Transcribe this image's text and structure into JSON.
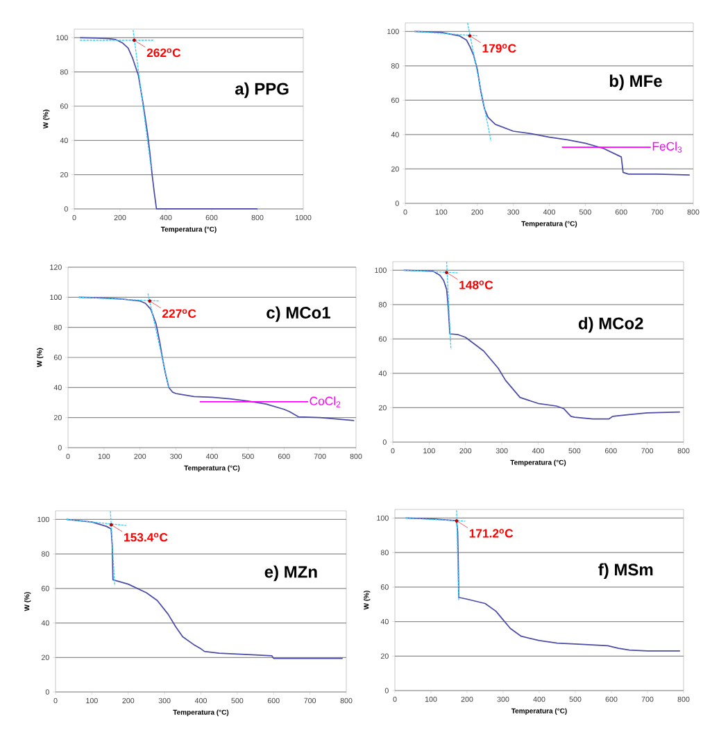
{
  "chart_data": [
    {
      "type": "line",
      "title": "a) PPG",
      "xlabel": "Temperatura (°C)",
      "ylabel": "W (%)",
      "xlim": [
        0,
        1000
      ],
      "ylim": [
        0,
        105
      ],
      "xticks": [
        0,
        200,
        400,
        600,
        800,
        1000
      ],
      "yticks": [
        0,
        20,
        40,
        60,
        80,
        100
      ],
      "grid": "y",
      "marker": "none",
      "series": [
        {
          "color": "#4b4ba8",
          "line_style": "solid",
          "x": [
            25,
            100,
            150,
            180,
            210,
            235,
            255,
            270,
            280,
            290,
            300,
            310,
            320,
            330,
            340,
            350,
            359,
            400,
            600,
            800
          ],
          "values": [
            100,
            99.8,
            99.5,
            99,
            97,
            94,
            88,
            82,
            78,
            70,
            62,
            53,
            44,
            33,
            20,
            9,
            0,
            0,
            0,
            0
          ]
        },
        {
          "color": "#33ccff",
          "line_style": "dashed",
          "x": [
            25,
            345
          ],
          "values": [
            98.5,
            98.5
          ]
        },
        {
          "color": "#33ccff",
          "line_style": "dashed",
          "x": [
            257,
            336
          ],
          "values": [
            104.5,
            23.4
          ]
        }
      ],
      "annotations": [
        {
          "text": "262$^{o}$C",
          "x": 262,
          "y": 98.5
        }
      ]
    },
    {
      "type": "line",
      "title": "b) MFe",
      "xlabel": "Temperatura (°C)",
      "xlim": [
        0,
        800
      ],
      "ylim": [
        0,
        105
      ],
      "xticks": [
        0,
        100,
        200,
        300,
        400,
        500,
        600,
        700,
        800
      ],
      "yticks": [
        0,
        20,
        40,
        60,
        80,
        100
      ],
      "grid": "y",
      "marker": "none",
      "series": [
        {
          "color": "#4b4ba8",
          "line_style": "solid",
          "x": [
            25,
            100,
            150,
            170,
            180,
            190,
            200,
            210,
            220,
            230,
            250,
            300,
            350,
            400,
            450,
            500,
            550,
            590,
            600,
            605,
            620,
            700,
            790
          ],
          "values": [
            100,
            99.5,
            97.5,
            95,
            91,
            86,
            78,
            65,
            55,
            50,
            46,
            42,
            40.5,
            38.5,
            37,
            35,
            32,
            28,
            27,
            18,
            17,
            17,
            16.5
          ]
        },
        {
          "color": "#33ccff",
          "line_style": "dashed",
          "x": [
            25,
            200
          ],
          "values": [
            100,
            97.5
          ]
        },
        {
          "color": "#33ccff",
          "line_style": "dashed",
          "x": [
            173,
            238
          ],
          "values": [
            105,
            36.3
          ]
        },
        {
          "name": "FeCl$_{3}$",
          "color": "#ff00ff",
          "line_style": "solid",
          "x": [
            435,
            682
          ],
          "values": [
            32.7,
            32.7
          ]
        }
      ],
      "annotations": [
        {
          "text": "179$^{o}$C",
          "x": 179,
          "y": 97.5
        }
      ]
    },
    {
      "type": "line",
      "title": "c) MCo1",
      "xlabel": "Temperatura (°C)",
      "ylabel": "W (%)",
      "xlim": [
        0,
        800
      ],
      "ylim": [
        0,
        120
      ],
      "xticks": [
        0,
        100,
        200,
        300,
        400,
        500,
        600,
        700,
        800
      ],
      "yticks": [
        0,
        20,
        40,
        60,
        80,
        100,
        120
      ],
      "grid": "y",
      "marker": "none",
      "series": [
        {
          "color": "#4b4ba8",
          "line_style": "solid",
          "x": [
            30,
            100,
            150,
            200,
            215,
            230,
            245,
            255,
            262,
            270,
            280,
            290,
            300,
            350,
            400,
            450,
            500,
            550,
            600,
            615,
            640,
            700,
            795
          ],
          "values": [
            100,
            99.5,
            98.8,
            97.5,
            96,
            92,
            82,
            70,
            60,
            50,
            40,
            37,
            36,
            34,
            33.5,
            32.5,
            31,
            29,
            25.5,
            24,
            20.5,
            20,
            18
          ]
        },
        {
          "color": "#33ccff",
          "line_style": "dashed",
          "x": [
            30,
            255
          ],
          "values": [
            100,
            97.5
          ]
        },
        {
          "color": "#33ccff",
          "line_style": "dashed",
          "x": [
            222,
            280
          ],
          "values": [
            102.5,
            40
          ]
        },
        {
          "name": "CoCl$_{2}$",
          "color": "#ff00ff",
          "line_style": "solid",
          "x": [
            366,
            667
          ],
          "values": [
            30.5,
            30.5
          ]
        }
      ],
      "annotations": [
        {
          "text": "227$^{o}$C",
          "x": 227,
          "y": 97.5
        }
      ]
    },
    {
      "type": "line",
      "title": "d) MCo2",
      "xlabel": "Temperatura (°C)",
      "xlim": [
        0,
        800
      ],
      "ylim": [
        0,
        105
      ],
      "xticks": [
        0,
        100,
        200,
        300,
        400,
        500,
        600,
        700,
        800
      ],
      "yticks": [
        0,
        20,
        40,
        60,
        80,
        100
      ],
      "grid": "y",
      "marker": "none",
      "series": [
        {
          "color": "#4b4ba8",
          "line_style": "solid",
          "x": [
            30,
            110,
            130,
            140,
            148,
            152,
            155,
            157,
            180,
            200,
            250,
            290,
            310,
            350,
            400,
            450,
            470,
            490,
            500,
            550,
            595,
            605,
            650,
            700,
            790
          ],
          "values": [
            100,
            99.5,
            97,
            94,
            89,
            80,
            70,
            63,
            62.5,
            61,
            53,
            43,
            36,
            26,
            22.5,
            21,
            19.5,
            15,
            14.5,
            13.5,
            13.5,
            15,
            16,
            17,
            17.5
          ]
        },
        {
          "color": "#33ccff",
          "line_style": "dashed",
          "x": [
            30,
            180
          ],
          "values": [
            100,
            98.5
          ]
        },
        {
          "color": "#33ccff",
          "line_style": "dashed",
          "x": [
            148,
            160
          ],
          "values": [
            105,
            54
          ]
        }
      ],
      "annotations": [
        {
          "text": "148$^{o}$C",
          "x": 148,
          "y": 98.7
        }
      ]
    },
    {
      "type": "line",
      "title": "e) MZn",
      "xlabel": "Temperatura (°C)",
      "ylabel": "W (%)",
      "xlim": [
        0,
        800
      ],
      "ylim": [
        0,
        105
      ],
      "xticks": [
        0,
        100,
        200,
        300,
        400,
        500,
        600,
        700,
        800
      ],
      "yticks": [
        0,
        20,
        40,
        60,
        80,
        100
      ],
      "grid": "y",
      "marker": "none",
      "series": [
        {
          "color": "#4b4ba8",
          "line_style": "solid",
          "x": [
            30,
            100,
            140,
            153,
            156,
            158,
            200,
            250,
            280,
            310,
            330,
            350,
            380,
            400,
            410,
            450,
            500,
            550,
            595,
            600,
            650,
            700,
            790
          ],
          "values": [
            100,
            98.5,
            96,
            94.5,
            85,
            65,
            62.5,
            57.5,
            53,
            45,
            38,
            32,
            27.5,
            25,
            23.5,
            22.5,
            22,
            21.5,
            21,
            19.5,
            19.5,
            19.5,
            19.5
          ]
        },
        {
          "color": "#33ccff",
          "line_style": "dashed",
          "x": [
            30,
            195
          ],
          "values": [
            100,
            96.5
          ]
        },
        {
          "color": "#33ccff",
          "line_style": "dashed",
          "x": [
            151,
            163
          ],
          "values": [
            104.8,
            61.5
          ]
        }
      ],
      "annotations": [
        {
          "text": "153.4$^{o}$C",
          "x": 153.4,
          "y": 96.9
        }
      ]
    },
    {
      "type": "line",
      "title": "f) MSm",
      "xlabel": "Temperatura (°C)",
      "ylabel": "W (%)",
      "xlim": [
        0,
        800
      ],
      "ylim": [
        0,
        105
      ],
      "xticks": [
        0,
        100,
        200,
        300,
        400,
        500,
        600,
        700,
        800
      ],
      "yticks": [
        0,
        20,
        40,
        60,
        80,
        100
      ],
      "grid": "y",
      "marker": "none",
      "series": [
        {
          "color": "#4b4ba8",
          "line_style": "solid",
          "x": [
            30,
            100,
            171,
            174,
            176,
            177,
            200,
            250,
            280,
            300,
            320,
            350,
            400,
            450,
            500,
            590,
            620,
            650,
            700,
            790
          ],
          "values": [
            100,
            99.5,
            98.5,
            92,
            70,
            54,
            53,
            50.5,
            46,
            41,
            36,
            31.5,
            29,
            27.5,
            27,
            26,
            24.5,
            23.5,
            23,
            23
          ]
        },
        {
          "color": "#33ccff",
          "line_style": "dashed",
          "x": [
            30,
            195
          ],
          "values": [
            100,
            98.2
          ]
        },
        {
          "color": "#33ccff",
          "line_style": "dashed",
          "x": [
            171,
            177
          ],
          "values": [
            104.5,
            52
          ]
        }
      ],
      "annotations": [
        {
          "text": "171.2$^{o}$C",
          "x": 171.2,
          "y": 98.4
        }
      ]
    }
  ]
}
